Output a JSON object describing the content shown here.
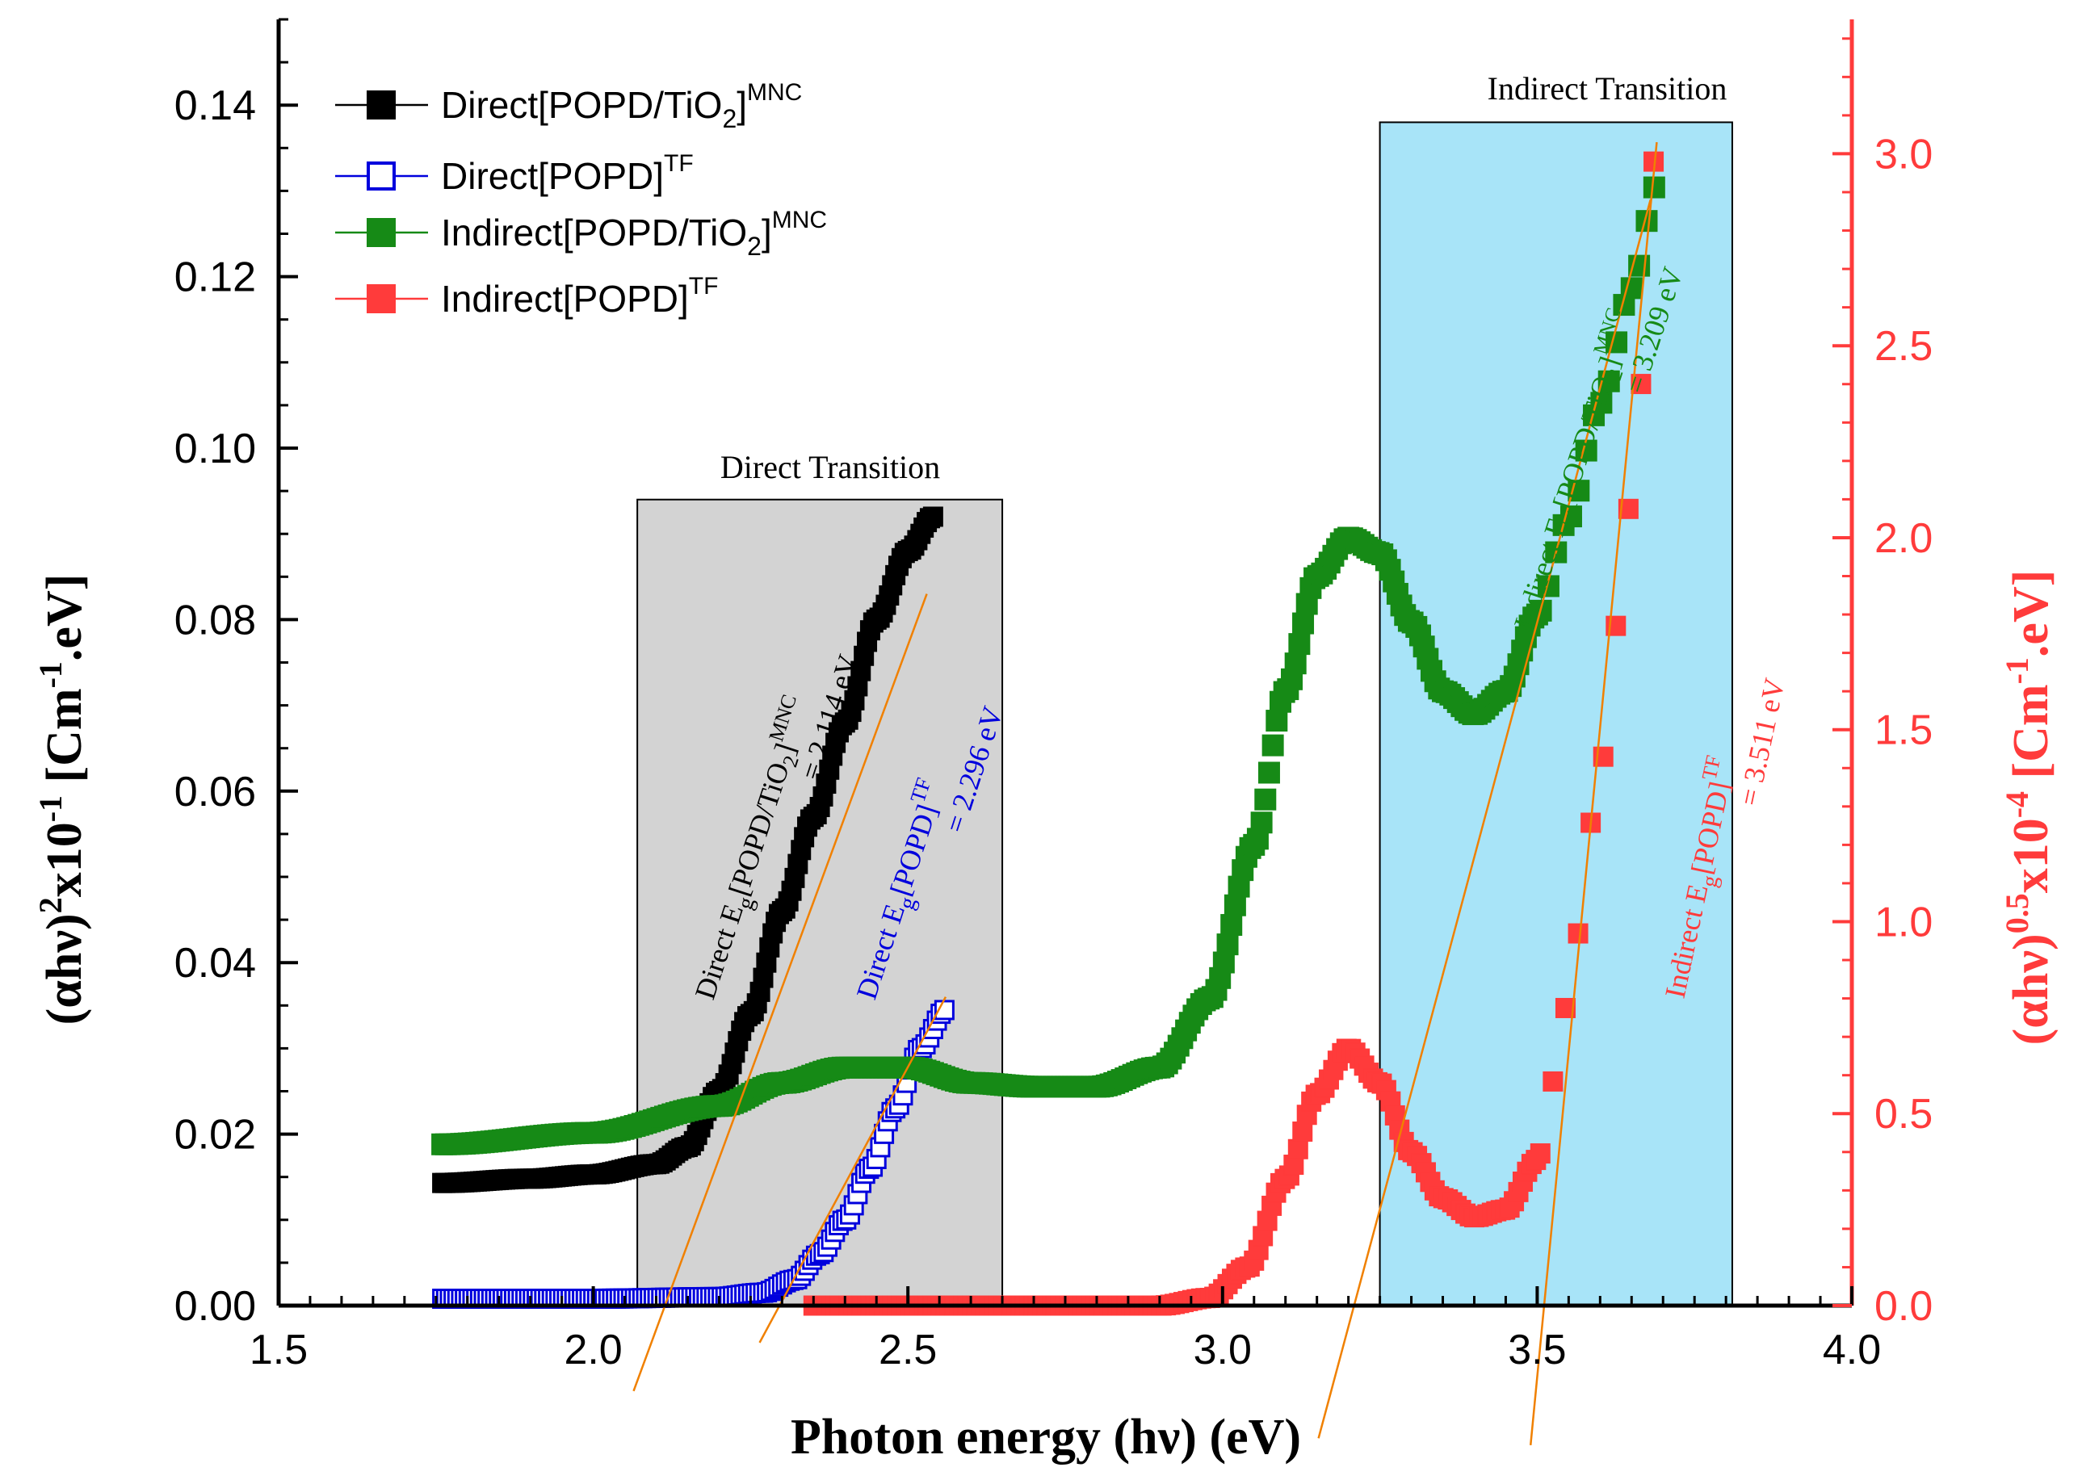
{
  "chart_data": {
    "type": "scatter",
    "title": "",
    "xlabel": "Photon energy (hν) (eV)",
    "ylabel_left": {
      "base": "(αhν)",
      "sup1": "2",
      "mid": "x10",
      "sup2": "-1",
      "tail": " [Cm",
      "sup3": "-1",
      "tail2": ".eV]"
    },
    "ylabel_right": {
      "base": "(αhν)",
      "sup1": "0.5",
      "mid": "x10",
      "sup2": "-4",
      "tail": " [Cm",
      "sup3": "-1",
      "tail2": ".eV]"
    },
    "xlim": [
      1.5,
      4.0
    ],
    "ylim_left": [
      0.0,
      0.15
    ],
    "ylim_right": [
      0.0,
      3.35
    ],
    "x_ticks": [
      "1.5",
      "2.0",
      "2.5",
      "3.0",
      "3.5",
      "4.0"
    ],
    "y_left_ticks": [
      "0.00",
      "0.02",
      "0.04",
      "0.06",
      "0.08",
      "0.10",
      "0.12",
      "0.14"
    ],
    "y_right_ticks": [
      "0.0",
      "0.5",
      "1.0",
      "1.5",
      "2.0",
      "2.5",
      "3.0"
    ],
    "colors": {
      "black": "#000000",
      "blue": "#0000dd",
      "green": "#168a16",
      "red": "#ff3b3b",
      "fit": "#f08000",
      "gray_region": "#d3d3d3",
      "cyan_region": "#a8e4f8"
    },
    "regions": [
      {
        "label": "Direct Transition",
        "x_start": 2.07,
        "x_end": 2.65,
        "y_top_left": 0.094
      },
      {
        "label": "Indirect Transition",
        "x_start": 3.25,
        "x_end": 3.81,
        "y_top_left": 0.138
      }
    ],
    "legend": [
      {
        "label_main": "Direct[POPD/TiO",
        "label_sub": "2",
        "label_tail": "]",
        "label_sup": "MNC",
        "color": "#000000",
        "marker": "filled-square"
      },
      {
        "label_main": "Direct[POPD]",
        "label_sub": "",
        "label_tail": "",
        "label_sup": "TF",
        "color": "#0000dd",
        "marker": "open-square"
      },
      {
        "label_main": "Indirect[POPD/TiO",
        "label_sub": "2",
        "label_tail": "]",
        "label_sup": "MNC",
        "color": "#168a16",
        "marker": "filled-square"
      },
      {
        "label_main": "Indirect[POPD]",
        "label_sub": "",
        "label_tail": "",
        "label_sup": "TF",
        "color": "#ff3b3b",
        "marker": "filled-square"
      }
    ],
    "series": [
      {
        "name": "Direct[POPD/TiO2]MNC",
        "axis": "left",
        "x_range": [
          1.76,
          2.54
        ],
        "points": [
          [
            1.76,
            0.0143
          ],
          [
            1.9,
            0.0148
          ],
          [
            2.0,
            0.0153
          ],
          [
            2.1,
            0.0165
          ],
          [
            2.15,
            0.0185
          ],
          [
            2.2,
            0.025
          ],
          [
            2.25,
            0.034
          ],
          [
            2.3,
            0.046
          ],
          [
            2.35,
            0.057
          ],
          [
            2.4,
            0.068
          ],
          [
            2.45,
            0.08
          ],
          [
            2.5,
            0.088
          ],
          [
            2.54,
            0.092
          ]
        ]
      },
      {
        "name": "Direct[POPD]TF",
        "axis": "left",
        "x_range": [
          1.76,
          2.56
        ],
        "points": [
          [
            1.76,
            0.0008
          ],
          [
            2.0,
            0.0008
          ],
          [
            2.2,
            0.001
          ],
          [
            2.27,
            0.0015
          ],
          [
            2.32,
            0.003
          ],
          [
            2.36,
            0.006
          ],
          [
            2.4,
            0.01
          ],
          [
            2.44,
            0.016
          ],
          [
            2.48,
            0.023
          ],
          [
            2.52,
            0.03
          ],
          [
            2.56,
            0.0345
          ]
        ]
      },
      {
        "name": "Indirect[POPD/TiO2]MNC",
        "axis": "right",
        "x_range": [
          1.76,
          3.69
        ],
        "points": [
          [
            1.76,
            0.42
          ],
          [
            2.0,
            0.45
          ],
          [
            2.2,
            0.52
          ],
          [
            2.3,
            0.58
          ],
          [
            2.4,
            0.62
          ],
          [
            2.5,
            0.62
          ],
          [
            2.6,
            0.58
          ],
          [
            2.7,
            0.57
          ],
          [
            2.8,
            0.57
          ],
          [
            2.9,
            0.62
          ],
          [
            2.98,
            0.8
          ],
          [
            3.05,
            1.2
          ],
          [
            3.1,
            1.6
          ],
          [
            3.15,
            1.9
          ],
          [
            3.2,
            2.0
          ],
          [
            3.25,
            1.96
          ],
          [
            3.3,
            1.78
          ],
          [
            3.35,
            1.6
          ],
          [
            3.4,
            1.54
          ],
          [
            3.45,
            1.6
          ],
          [
            3.5,
            1.8
          ],
          [
            3.55,
            2.05
          ],
          [
            3.6,
            2.35
          ],
          [
            3.65,
            2.65
          ],
          [
            3.69,
            2.92
          ]
        ]
      },
      {
        "name": "Indirect[POPD]TF",
        "axis": "right",
        "x_range": [
          2.35,
          3.69
        ],
        "points": [
          [
            2.35,
            0.0
          ],
          [
            2.9,
            0.0
          ],
          [
            2.98,
            0.02
          ],
          [
            3.04,
            0.1
          ],
          [
            3.1,
            0.33
          ],
          [
            3.15,
            0.55
          ],
          [
            3.2,
            0.67
          ],
          [
            3.25,
            0.58
          ],
          [
            3.3,
            0.4
          ],
          [
            3.35,
            0.28
          ],
          [
            3.4,
            0.23
          ],
          [
            3.45,
            0.25
          ],
          [
            3.5,
            0.38
          ],
          [
            3.53,
            0.6
          ],
          [
            3.56,
            0.95
          ],
          [
            3.6,
            1.4
          ],
          [
            3.63,
            1.8
          ],
          [
            3.66,
            2.35
          ],
          [
            3.69,
            3.03
          ]
        ]
      }
    ],
    "annotations": [
      {
        "id": "direct_mnc",
        "prefix": "Direct E",
        "sub": "g",
        "bracket": "[POPD/TiO",
        "bsub": "2",
        "bclose": "]",
        "sup": "MNC",
        "value": "= 2.114 eV",
        "color": "#000000"
      },
      {
        "id": "direct_tf",
        "prefix": "Direct E",
        "sub": "g",
        "bracket": "[POPD]",
        "bsub": "",
        "bclose": "",
        "sup": "TF",
        "value": "= 2.296 eV",
        "color": "#0000dd"
      },
      {
        "id": "indirect_mnc",
        "prefix": "Indirect E",
        "sub": "g",
        "bracket": "[POPD/TiO",
        "bsub": "2",
        "bclose": "]",
        "sup": "MNC",
        "value": "= 3.209 eV",
        "color": "#168a16"
      },
      {
        "id": "indirect_tf",
        "prefix": "Indirect E",
        "sub": "g",
        "bracket": "[POPD]",
        "bsub": "",
        "bclose": "",
        "sup": "TF",
        "value": "= 3.511 eV",
        "color": "#ff3b3b"
      }
    ],
    "fit_lines": [
      {
        "name": "direct-mnc-fit",
        "axis": "left",
        "from": [
          2.114,
          0.0
        ],
        "to": [
          2.53,
          0.083
        ]
      },
      {
        "name": "direct-tf-fit",
        "axis": "left",
        "from": [
          2.296,
          0.0
        ],
        "to": [
          2.56,
          0.036
        ]
      },
      {
        "name": "indirect-mnc-fit",
        "axis": "right",
        "from": [
          3.209,
          0.0
        ],
        "to": [
          3.68,
          2.88
        ]
      },
      {
        "name": "indirect-tf-fit",
        "axis": "right",
        "from": [
          3.511,
          0.0
        ],
        "to": [
          3.69,
          3.03
        ]
      }
    ]
  }
}
